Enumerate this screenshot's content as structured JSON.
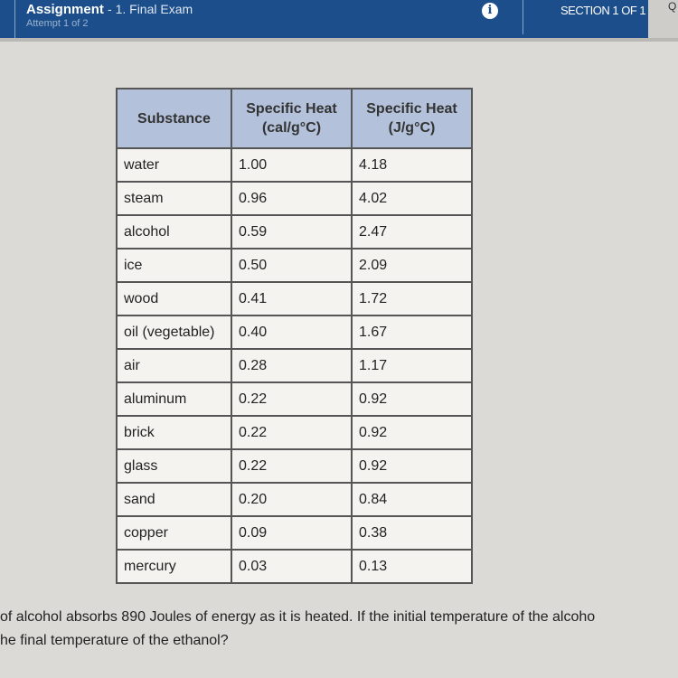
{
  "header": {
    "title": "Assignment",
    "subtitle": "- 1. Final Exam",
    "attempt": "Attempt 1 of 2",
    "info_icon": "info-icon",
    "section": "SECTION 1 OF 1",
    "right_stub": "Q"
  },
  "table": {
    "headers": [
      "Substance",
      "Specific Heat (cal/g°C)",
      "Specific Heat (J/g°C)"
    ],
    "rows": [
      [
        "water",
        "1.00",
        "4.18"
      ],
      [
        "steam",
        "0.96",
        "4.02"
      ],
      [
        "alcohol",
        "0.59",
        "2.47"
      ],
      [
        "ice",
        "0.50",
        "2.09"
      ],
      [
        "wood",
        "0.41",
        "1.72"
      ],
      [
        "oil (vegetable)",
        "0.40",
        "1.67"
      ],
      [
        "air",
        "0.28",
        "1.17"
      ],
      [
        "aluminum",
        "0.22",
        "0.92"
      ],
      [
        "brick",
        "0.22",
        "0.92"
      ],
      [
        "glass",
        "0.22",
        "0.92"
      ],
      [
        "sand",
        "0.20",
        "0.84"
      ],
      [
        "copper",
        "0.09",
        "0.38"
      ],
      [
        "mercury",
        "0.03",
        "0.13"
      ]
    ]
  },
  "question": {
    "line1": "of alcohol absorbs 890 Joules of energy as it is heated. If the initial temperature of the alcoho",
    "line2": "he final temperature of the ethanol?"
  }
}
